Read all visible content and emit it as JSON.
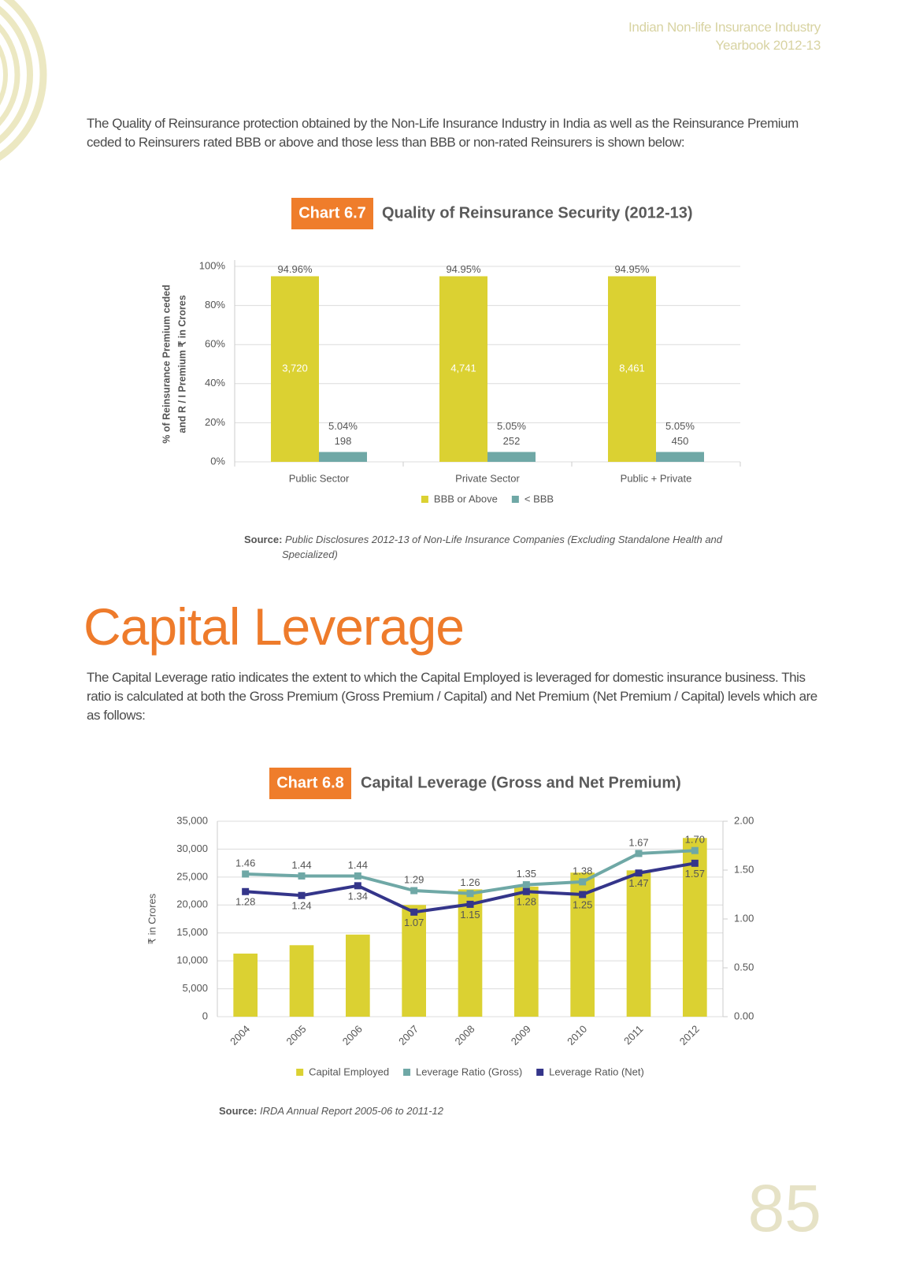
{
  "header": {
    "line1": "Indian Non-life Insurance Industry",
    "line2": "Yearbook 2012-13"
  },
  "intro": "The Quality of Reinsurance protection obtained by the Non-Life Insurance Industry in India as well as the Reinsurance Premium ceded to Reinsurers rated BBB or above and those less than BBB or non-rated Reinsurers is shown below:",
  "chart_data": [
    {
      "type": "bar",
      "label": "Chart 6.7",
      "title": "Quality of Reinsurance Security (2012-13)",
      "ylabel": [
        "% of Reinsurance Premium ceded",
        "and R / I Premium ₹ in Crores"
      ],
      "categories": [
        "Public Sector",
        "Private Sector",
        "Public + Private"
      ],
      "series": [
        {
          "name": "BBB or Above",
          "color": "#dbd132",
          "values": [
            94.96,
            94.95,
            94.95
          ],
          "value_labels": [
            "94.96%",
            "94.95%",
            "94.95%"
          ],
          "amounts": [
            3720,
            4741,
            8461
          ],
          "amount_labels": [
            "3,720",
            "4,741",
            "8,461"
          ]
        },
        {
          "name": "< BBB",
          "color": "#6fa8a6",
          "values": [
            5.04,
            5.05,
            5.05
          ],
          "value_labels": [
            "5.04%",
            "5.05%",
            "5.05%"
          ],
          "amounts": [
            198,
            252,
            450
          ]
        }
      ],
      "ylim": [
        0,
        100
      ],
      "yticks": [
        {
          "value": 0,
          "label": "0%"
        },
        {
          "value": 20,
          "label": "20%"
        },
        {
          "value": 40,
          "label": "40%"
        },
        {
          "value": 60,
          "label": "60%"
        },
        {
          "value": 80,
          "label": "80%"
        },
        {
          "value": 100,
          "label": "100%"
        }
      ],
      "grid": true,
      "legend": "bottom",
      "source_label": "Source:",
      "source": "Public Disclosures 2012-13 of Non-Life Insurance Companies (Excluding Standalone Health and Specialized)"
    },
    {
      "type": "combo",
      "label": "Chart 6.8",
      "title": "Capital Leverage (Gross and Net Premium)",
      "ylabel": "₹ in Crores",
      "categories": [
        "2004",
        "2005",
        "2006",
        "2007",
        "2008",
        "2009",
        "2010",
        "2011",
        "2012"
      ],
      "series": [
        {
          "name": "Capital Employed",
          "type": "bar",
          "color": "#dbd132",
          "values": [
            11300,
            12800,
            14700,
            20000,
            22800,
            23300,
            25800,
            26200,
            32000
          ]
        },
        {
          "name": "Leverage Ratio (Gross)",
          "type": "line",
          "axis": "y2",
          "color": "#6fa8a6",
          "values": [
            1.46,
            1.44,
            1.44,
            1.29,
            1.26,
            1.35,
            1.38,
            1.67,
            1.7
          ],
          "value_labels": [
            "1.46",
            "1.44",
            "1.44",
            "1.29",
            "1.26",
            "1.35",
            "1.38",
            "1.67",
            "1.70"
          ]
        },
        {
          "name": "Leverage Ratio (Net)",
          "type": "line",
          "axis": "y2",
          "color": "#34358a",
          "values": [
            1.28,
            1.24,
            1.34,
            1.07,
            1.15,
            1.28,
            1.25,
            1.47,
            1.57
          ]
        }
      ],
      "ylim": [
        0,
        35000
      ],
      "yticks": [
        0,
        {
          "value": 5000,
          "label": "5,000"
        },
        {
          "value": 10000,
          "label": "10,000"
        },
        {
          "value": 15000,
          "label": "15,000"
        },
        {
          "value": 20000,
          "label": "20,000"
        },
        {
          "value": 25000,
          "label": "25,000"
        },
        {
          "value": 30000,
          "label": "30,000"
        },
        {
          "value": 35000,
          "label": "35,000"
        }
      ],
      "y2lim": [
        0,
        2
      ],
      "y2ticks": [
        {
          "value": 0,
          "label": "0.00"
        },
        {
          "value": 0.5,
          "label": "0.50"
        },
        {
          "value": 1,
          "label": "1.00"
        },
        {
          "value": 1.5,
          "label": "1.50"
        },
        {
          "value": 2,
          "label": "2.00"
        }
      ],
      "grid": true,
      "legend": "bottom",
      "source_label": "Source:",
      "source": "IRDA Annual Report 2005-06 to 2011-12"
    }
  ],
  "section": {
    "title": "Capital Leverage",
    "text": "The Capital Leverage ratio indicates the extent to which the Capital Employed is leveraged for domestic insurance business. This ratio is calculated at both the Gross Premium (Gross Premium / Capital) and Net Premium (Net Premium / Capital) levels which are as follows:"
  },
  "page_number": 85
}
